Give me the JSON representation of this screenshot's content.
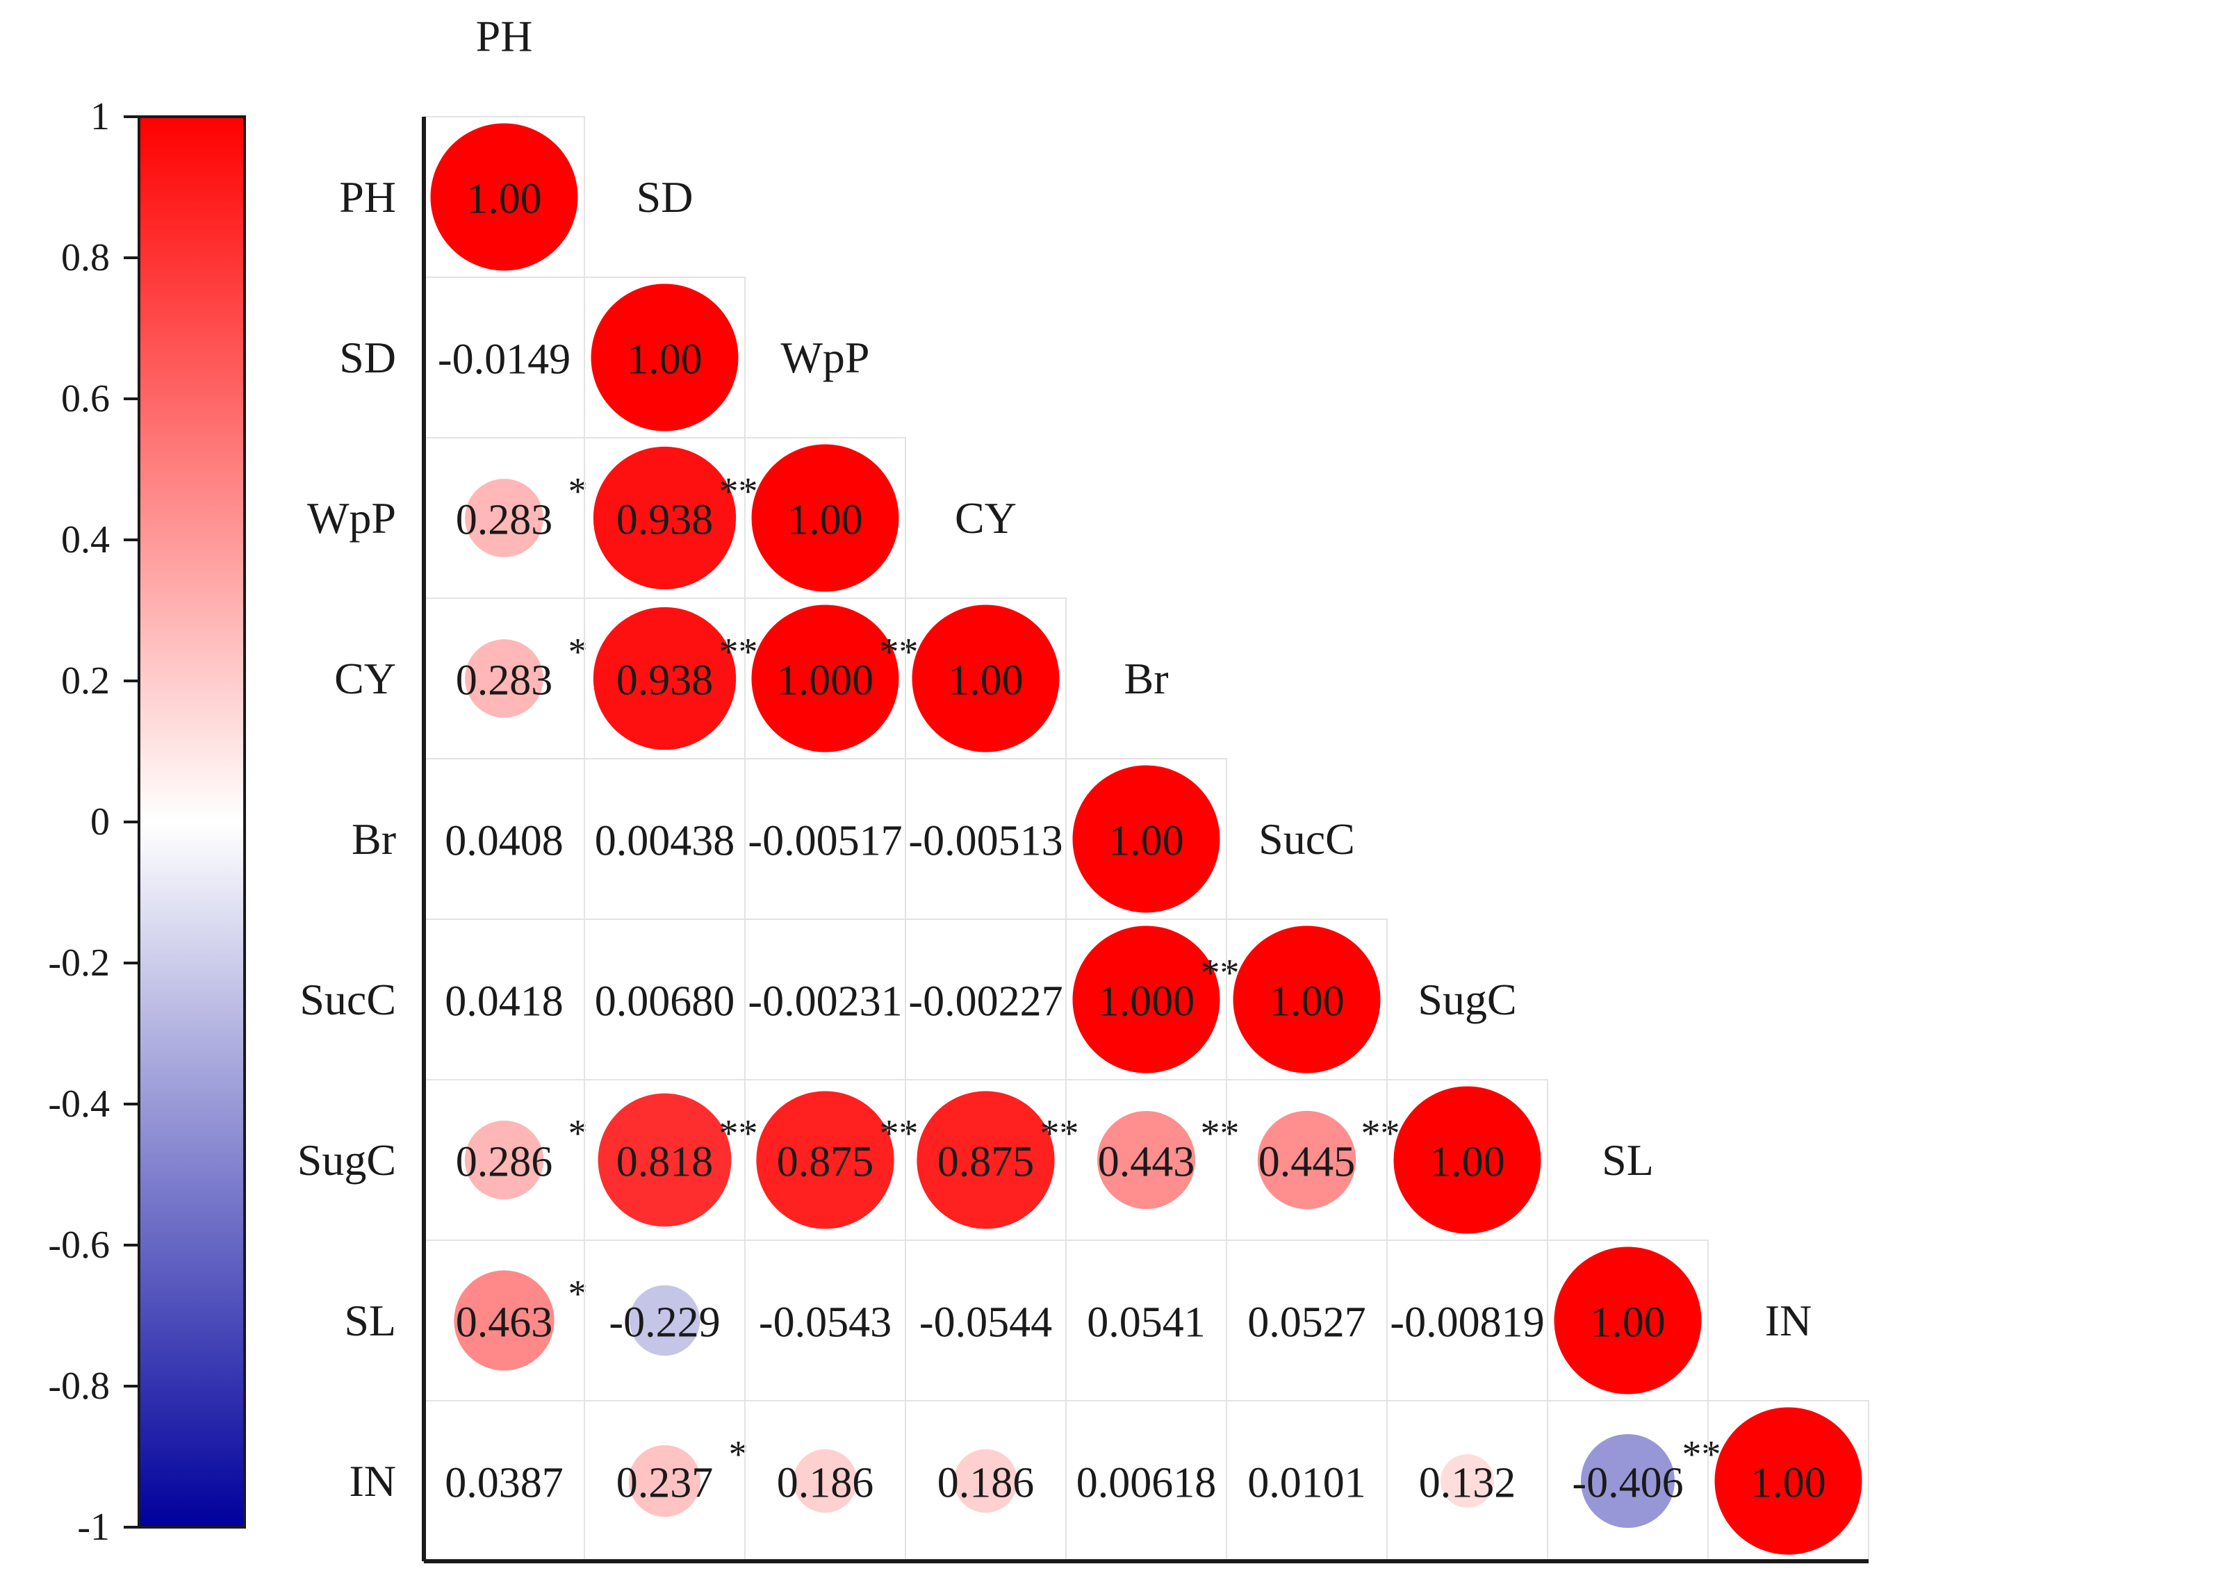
{
  "chart_data": {
    "type": "heatmap",
    "variables": [
      "PH",
      "SD",
      "WpP",
      "CY",
      "Br",
      "SucC",
      "SugC",
      "SL",
      "IN"
    ],
    "matrix": [
      [
        {
          "v": 1.0,
          "label": "1.00",
          "sig": ""
        }
      ],
      [
        {
          "v": -0.0149,
          "label": "-0.0149",
          "sig": ""
        },
        {
          "v": 1.0,
          "label": "1.00",
          "sig": ""
        }
      ],
      [
        {
          "v": 0.283,
          "label": "0.283",
          "sig": "*"
        },
        {
          "v": 0.938,
          "label": "0.938",
          "sig": "**"
        },
        {
          "v": 1.0,
          "label": "1.00",
          "sig": ""
        }
      ],
      [
        {
          "v": 0.283,
          "label": "0.283",
          "sig": "*"
        },
        {
          "v": 0.938,
          "label": "0.938",
          "sig": "**"
        },
        {
          "v": 1.0,
          "label": "1.000",
          "sig": "**"
        },
        {
          "v": 1.0,
          "label": "1.00",
          "sig": ""
        }
      ],
      [
        {
          "v": 0.0408,
          "label": "0.0408",
          "sig": ""
        },
        {
          "v": 0.00438,
          "label": "0.00438",
          "sig": ""
        },
        {
          "v": -0.00517,
          "label": "-0.00517",
          "sig": ""
        },
        {
          "v": -0.00513,
          "label": "-0.00513",
          "sig": ""
        },
        {
          "v": 1.0,
          "label": "1.00",
          "sig": ""
        }
      ],
      [
        {
          "v": 0.0418,
          "label": "0.0418",
          "sig": ""
        },
        {
          "v": 0.0068,
          "label": "0.00680",
          "sig": ""
        },
        {
          "v": -0.00231,
          "label": "-0.00231",
          "sig": ""
        },
        {
          "v": -0.00227,
          "label": "-0.00227",
          "sig": ""
        },
        {
          "v": 1.0,
          "label": "1.000",
          "sig": "**"
        },
        {
          "v": 1.0,
          "label": "1.00",
          "sig": ""
        }
      ],
      [
        {
          "v": 0.286,
          "label": "0.286",
          "sig": "*"
        },
        {
          "v": 0.818,
          "label": "0.818",
          "sig": "**"
        },
        {
          "v": 0.875,
          "label": "0.875",
          "sig": "**"
        },
        {
          "v": 0.875,
          "label": "0.875",
          "sig": "**"
        },
        {
          "v": 0.443,
          "label": "0.443",
          "sig": "**"
        },
        {
          "v": 0.445,
          "label": "0.445",
          "sig": "**"
        },
        {
          "v": 1.0,
          "label": "1.00",
          "sig": ""
        }
      ],
      [
        {
          "v": 0.463,
          "label": "0.463",
          "sig": "*"
        },
        {
          "v": -0.229,
          "label": "-0.229",
          "sig": ""
        },
        {
          "v": -0.0543,
          "label": "-0.0543",
          "sig": ""
        },
        {
          "v": -0.0544,
          "label": "-0.0544",
          "sig": ""
        },
        {
          "v": 0.0541,
          "label": "0.0541",
          "sig": ""
        },
        {
          "v": 0.0527,
          "label": "0.0527",
          "sig": ""
        },
        {
          "v": -0.00819,
          "label": "-0.00819",
          "sig": ""
        },
        {
          "v": 1.0,
          "label": "1.00",
          "sig": ""
        }
      ],
      [
        {
          "v": 0.0387,
          "label": "0.0387",
          "sig": ""
        },
        {
          "v": 0.237,
          "label": "0.237",
          "sig": "*"
        },
        {
          "v": 0.186,
          "label": "0.186",
          "sig": ""
        },
        {
          "v": 0.186,
          "label": "0.186",
          "sig": ""
        },
        {
          "v": 0.00618,
          "label": "0.00618",
          "sig": ""
        },
        {
          "v": 0.0101,
          "label": "0.0101",
          "sig": ""
        },
        {
          "v": 0.132,
          "label": "0.132",
          "sig": ""
        },
        {
          "v": -0.406,
          "label": "-0.406",
          "sig": "**"
        },
        {
          "v": 1.0,
          "label": "1.00",
          "sig": ""
        }
      ]
    ],
    "colorbar": {
      "ticks": [
        "1",
        "0.8",
        "0.6",
        "0.4",
        "0.2",
        "0",
        "-0.2",
        "-0.4",
        "-0.6",
        "-0.8",
        "-1"
      ],
      "range": [
        -1,
        1
      ]
    },
    "colors": {
      "positive": "#ff0000",
      "neutral": "#ffffff",
      "negative": "#00009c"
    },
    "title": "",
    "xlabel": "",
    "ylabel": ""
  }
}
